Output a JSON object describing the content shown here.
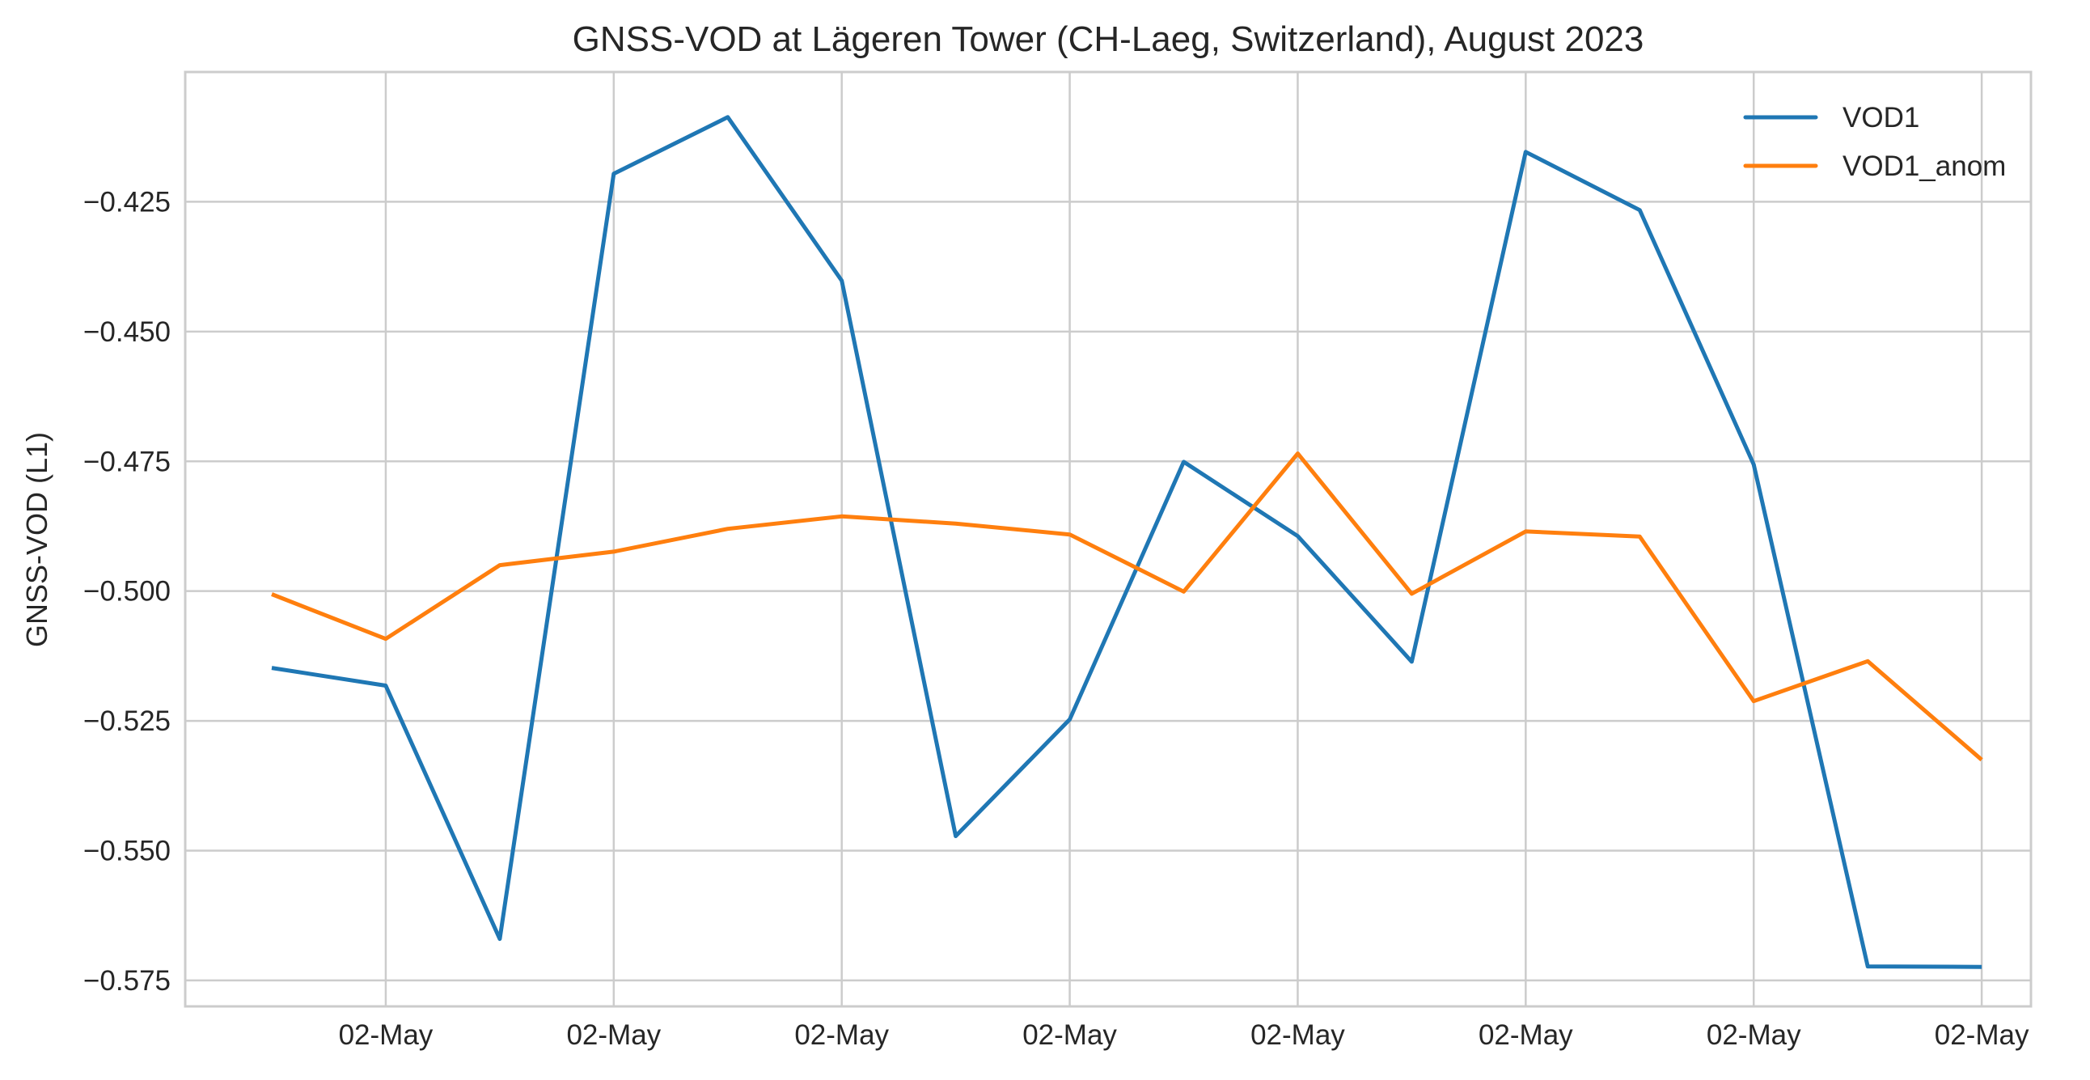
{
  "chart_data": {
    "type": "line",
    "title": "GNSS-VOD at Lägeren Tower (CH-Laeg, Switzerland), August 2023",
    "xlabel": "",
    "ylabel": "GNSS-VOD (L1)",
    "x_tick_labels": [
      "02-May",
      "02-May",
      "02-May",
      "02-May",
      "02-May",
      "02-May",
      "02-May",
      "02-May"
    ],
    "y_ticks": [
      -0.425,
      -0.45,
      -0.475,
      -0.5,
      -0.525,
      -0.55,
      -0.575
    ],
    "y_tick_labels": [
      "−0.425",
      "−0.450",
      "−0.475",
      "−0.500",
      "−0.525",
      "−0.550",
      "−0.575"
    ],
    "ylim": [
      -0.58,
      -0.4
    ],
    "grid": true,
    "legend_position": "top-right",
    "series": [
      {
        "name": "VOD1",
        "color": "#1f77b4",
        "values": [
          -0.5148,
          -0.5182,
          -0.567,
          -0.4196,
          -0.4087,
          -0.4402,
          -0.5472,
          -0.5247,
          -0.4751,
          -0.4894,
          -0.5136,
          -0.4154,
          -0.4266,
          -0.4756,
          -0.5723,
          -0.5724
        ]
      },
      {
        "name": "VOD1_anom",
        "color": "#ff7f0e",
        "values": [
          -0.5006,
          -0.5092,
          -0.495,
          -0.4924,
          -0.488,
          -0.4856,
          -0.487,
          -0.4891,
          -0.5001,
          -0.4735,
          -0.5005,
          -0.4885,
          -0.4895,
          -0.5212,
          -0.5135,
          -0.5325
        ]
      }
    ]
  },
  "style": {
    "grid_color": "#cccccc",
    "frame_color": "#cccccc",
    "text_color": "#262626"
  }
}
